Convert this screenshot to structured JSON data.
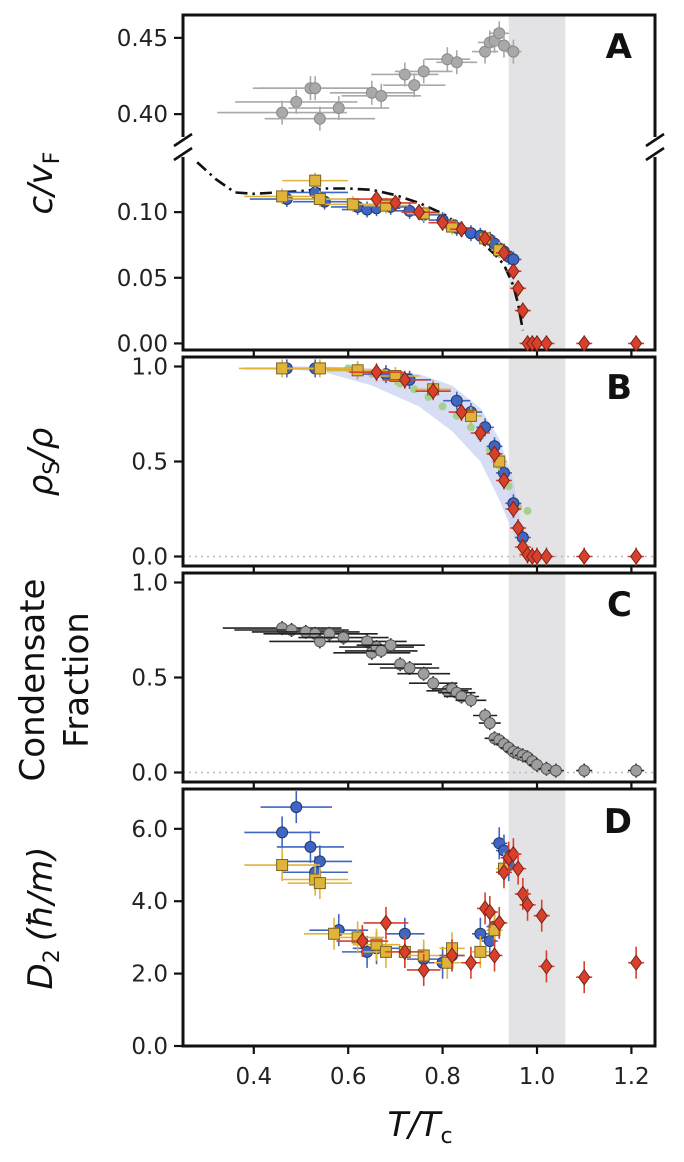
{
  "chart_data": [
    {
      "type": "scatter",
      "panel_label": "A",
      "ylabel_main": "c/v",
      "ylabel_sub": "F",
      "xlabel": "T/T",
      "xlabel_sub": "c",
      "xlim": [
        0.25,
        1.25
      ],
      "x_ticks": [
        "0.4",
        "0.6",
        "0.8",
        "1.0",
        "1.2"
      ],
      "x_tick_values": [
        0.4,
        0.6,
        0.8,
        1.0,
        1.2
      ],
      "shaded_region_x": [
        0.94,
        1.06
      ],
      "upper_axis": {
        "ylim": [
          0.385,
          0.465
        ],
        "y_ticks": [
          "0.40",
          "0.45"
        ],
        "y_tick_values": [
          0.4,
          0.45
        ],
        "series": [
          {
            "name": "gray",
            "color": "#a9a9a9",
            "x": [
              0.46,
              0.49,
              0.52,
              0.53,
              0.54,
              0.58,
              0.65,
              0.67,
              0.72,
              0.74,
              0.76,
              0.81,
              0.83,
              0.89,
              0.9,
              0.91,
              0.92,
              0.93,
              0.95
            ],
            "y": [
              0.401,
              0.408,
              0.417,
              0.417,
              0.397,
              0.404,
              0.414,
              0.412,
              0.426,
              0.419,
              0.428,
              0.436,
              0.434,
              0.441,
              0.447,
              0.448,
              0.453,
              0.445,
              0.441
            ]
          }
        ]
      },
      "lower_axis": {
        "ylim": [
          -0.005,
          0.142
        ],
        "y_ticks": [
          "0.00",
          "0.05",
          "0.10"
        ],
        "y_tick_values": [
          0.0,
          0.05,
          0.1
        ],
        "series": [
          {
            "name": "blue",
            "color": "#3f66c2",
            "marker": "circle",
            "x": [
              0.47,
              0.53,
              0.55,
              0.62,
              0.64,
              0.66,
              0.69,
              0.73,
              0.76,
              0.8,
              0.83,
              0.86,
              0.88,
              0.9,
              0.91,
              0.92,
              0.93,
              0.94,
              0.95
            ],
            "y": [
              0.11,
              0.115,
              0.108,
              0.104,
              0.102,
              0.103,
              0.104,
              0.101,
              0.098,
              0.094,
              0.088,
              0.084,
              0.082,
              0.079,
              0.076,
              0.072,
              0.07,
              0.066,
              0.064
            ]
          },
          {
            "name": "gold",
            "color": "#e0b43a",
            "marker": "square",
            "x": [
              0.46,
              0.53,
              0.54,
              0.61,
              0.68,
              0.76,
              0.82,
              0.89,
              0.92
            ],
            "y": [
              0.112,
              0.124,
              0.11,
              0.106,
              0.105,
              0.099,
              0.089,
              0.08,
              0.071
            ]
          },
          {
            "name": "red",
            "color": "#d9402b",
            "marker": "diamond",
            "x": [
              0.66,
              0.7,
              0.75,
              0.8,
              0.84,
              0.89,
              0.93,
              0.95,
              0.96,
              0.97,
              0.98,
              0.99,
              1.0,
              1.02,
              1.1,
              1.21
            ],
            "y": [
              0.11,
              0.107,
              0.1,
              0.092,
              0.087,
              0.08,
              0.069,
              0.055,
              0.042,
              0.025,
              0.0,
              0.0,
              0.0,
              0.0,
              0.0,
              0.0
            ]
          }
        ],
        "dashdot_curve": {
          "x": [
            0.28,
            0.32,
            0.36,
            0.4,
            0.45,
            0.5,
            0.55,
            0.6,
            0.65,
            0.7,
            0.75,
            0.8,
            0.85,
            0.88,
            0.91,
            0.93,
            0.95,
            0.96,
            0.97
          ],
          "y": [
            0.138,
            0.125,
            0.115,
            0.114,
            0.115,
            0.116,
            0.118,
            0.118,
            0.117,
            0.113,
            0.107,
            0.099,
            0.087,
            0.078,
            0.068,
            0.06,
            0.044,
            0.03,
            0.01
          ]
        }
      }
    },
    {
      "type": "scatter",
      "panel_label": "B",
      "ylabel_main": "ρ",
      "ylabel_sub": "S",
      "ylabel_tail": "/ρ",
      "ylim": [
        -0.05,
        1.05
      ],
      "y_ticks": [
        "0.0",
        "0.5",
        "1.0"
      ],
      "y_tick_values": [
        0.0,
        0.5,
        1.0
      ],
      "reference_line_y": 0.0,
      "series": [
        {
          "name": "green",
          "color": "#a6d08f",
          "marker": "circle",
          "x": [
            0.6,
            0.62,
            0.65,
            0.68,
            0.71,
            0.74,
            0.77,
            0.8,
            0.83,
            0.86,
            0.88,
            0.9,
            0.92,
            0.94,
            0.96,
            0.98
          ],
          "y": [
            0.99,
            0.98,
            0.96,
            0.94,
            0.91,
            0.88,
            0.84,
            0.79,
            0.74,
            0.68,
            0.63,
            0.56,
            0.48,
            0.37,
            0.26,
            0.24
          ]
        },
        {
          "name": "blue",
          "color": "#3f66c2",
          "marker": "circle",
          "x": [
            0.47,
            0.53,
            0.62,
            0.68,
            0.73,
            0.78,
            0.83,
            0.86,
            0.89,
            0.91,
            0.93,
            0.95,
            0.97
          ],
          "y": [
            0.99,
            0.99,
            0.98,
            0.96,
            0.93,
            0.88,
            0.82,
            0.76,
            0.68,
            0.58,
            0.44,
            0.28,
            0.1
          ]
        },
        {
          "name": "gold",
          "color": "#e0b43a",
          "marker": "square",
          "x": [
            0.46,
            0.54,
            0.62,
            0.7,
            0.78,
            0.86,
            0.92
          ],
          "y": [
            0.99,
            0.99,
            0.98,
            0.95,
            0.88,
            0.74,
            0.5
          ]
        },
        {
          "name": "red",
          "color": "#d9402b",
          "marker": "diamond",
          "x": [
            0.66,
            0.72,
            0.78,
            0.84,
            0.88,
            0.91,
            0.93,
            0.95,
            0.96,
            0.97,
            0.98,
            0.99,
            1.0,
            1.02,
            1.1,
            1.21
          ],
          "y": [
            0.97,
            0.93,
            0.87,
            0.76,
            0.65,
            0.54,
            0.4,
            0.25,
            0.15,
            0.05,
            0.01,
            0.0,
            0.0,
            0.0,
            0.0,
            0.0
          ]
        }
      ],
      "band": {
        "x": [
          0.45,
          0.55,
          0.65,
          0.75,
          0.82,
          0.88,
          0.92,
          0.95,
          0.97
        ],
        "upper": [
          1.0,
          1.0,
          0.99,
          0.96,
          0.9,
          0.78,
          0.62,
          0.4,
          0.12
        ],
        "lower": [
          0.99,
          0.97,
          0.9,
          0.79,
          0.66,
          0.5,
          0.3,
          0.12,
          0.0
        ]
      }
    },
    {
      "type": "scatter",
      "panel_label": "C",
      "ylabel_line1": "Condensate",
      "ylabel_line2": "Fraction",
      "ylim": [
        -0.05,
        1.05
      ],
      "y_ticks": [
        "0.0",
        "0.5",
        "1.0"
      ],
      "y_tick_values": [
        0.0,
        0.5,
        1.0
      ],
      "reference_line_y": 0.0,
      "series": [
        {
          "name": "gray",
          "color": "#9e9e9e",
          "marker": "circle",
          "x": [
            0.46,
            0.48,
            0.51,
            0.53,
            0.54,
            0.56,
            0.59,
            0.64,
            0.65,
            0.66,
            0.67,
            0.69,
            0.71,
            0.73,
            0.76,
            0.78,
            0.81,
            0.82,
            0.83,
            0.84,
            0.86,
            0.89,
            0.9,
            0.91,
            0.92,
            0.93,
            0.94,
            0.95,
            0.96,
            0.97,
            0.98,
            0.99,
            1.0,
            1.02,
            1.04,
            1.1,
            1.21
          ],
          "y": [
            0.76,
            0.75,
            0.74,
            0.73,
            0.69,
            0.73,
            0.71,
            0.69,
            0.63,
            0.66,
            0.64,
            0.67,
            0.57,
            0.55,
            0.52,
            0.47,
            0.43,
            0.44,
            0.42,
            0.4,
            0.38,
            0.3,
            0.26,
            0.18,
            0.17,
            0.15,
            0.13,
            0.11,
            0.1,
            0.09,
            0.08,
            0.06,
            0.04,
            0.02,
            0.01,
            0.01,
            0.01
          ]
        }
      ]
    },
    {
      "type": "scatter",
      "panel_label": "D",
      "ylabel_main": "D",
      "ylabel_sub": "2",
      "ylabel_tail": "(ħ/m)",
      "ylim": [
        0.0,
        7.1
      ],
      "y_ticks": [
        "0.0",
        "2.0",
        "4.0",
        "6.0"
      ],
      "y_tick_values": [
        0.0,
        2.0,
        4.0,
        6.0
      ],
      "series": [
        {
          "name": "blue",
          "color": "#3f66c2",
          "marker": "circle",
          "x": [
            0.46,
            0.49,
            0.52,
            0.53,
            0.54,
            0.58,
            0.64,
            0.66,
            0.72,
            0.76,
            0.8,
            0.82,
            0.88,
            0.9,
            0.91,
            0.92,
            0.93,
            0.94
          ],
          "y": [
            5.9,
            6.6,
            5.5,
            4.8,
            5.1,
            3.2,
            2.6,
            2.7,
            3.1,
            2.4,
            2.3,
            2.5,
            3.1,
            2.9,
            3.3,
            5.6,
            5.4,
            5.0
          ]
        },
        {
          "name": "gold",
          "color": "#e0b43a",
          "marker": "square",
          "x": [
            0.46,
            0.53,
            0.54,
            0.57,
            0.62,
            0.66,
            0.68,
            0.72,
            0.76,
            0.81,
            0.82,
            0.88,
            0.91,
            0.93
          ],
          "y": [
            5.0,
            4.6,
            4.5,
            3.1,
            3.0,
            2.8,
            2.6,
            2.6,
            2.5,
            2.3,
            2.7,
            2.6,
            3.2,
            4.9
          ]
        },
        {
          "name": "red",
          "color": "#d9402b",
          "marker": "diamond",
          "x": [
            0.63,
            0.68,
            0.72,
            0.76,
            0.82,
            0.86,
            0.89,
            0.9,
            0.91,
            0.92,
            0.93,
            0.94,
            0.95,
            0.96,
            0.97,
            0.98,
            1.01,
            1.02,
            1.1,
            1.21
          ],
          "y": [
            2.9,
            3.4,
            2.6,
            2.1,
            2.5,
            2.3,
            3.8,
            3.7,
            2.5,
            3.4,
            4.8,
            5.2,
            5.3,
            4.9,
            4.2,
            3.9,
            3.6,
            2.2,
            1.9,
            2.3
          ]
        }
      ]
    }
  ]
}
